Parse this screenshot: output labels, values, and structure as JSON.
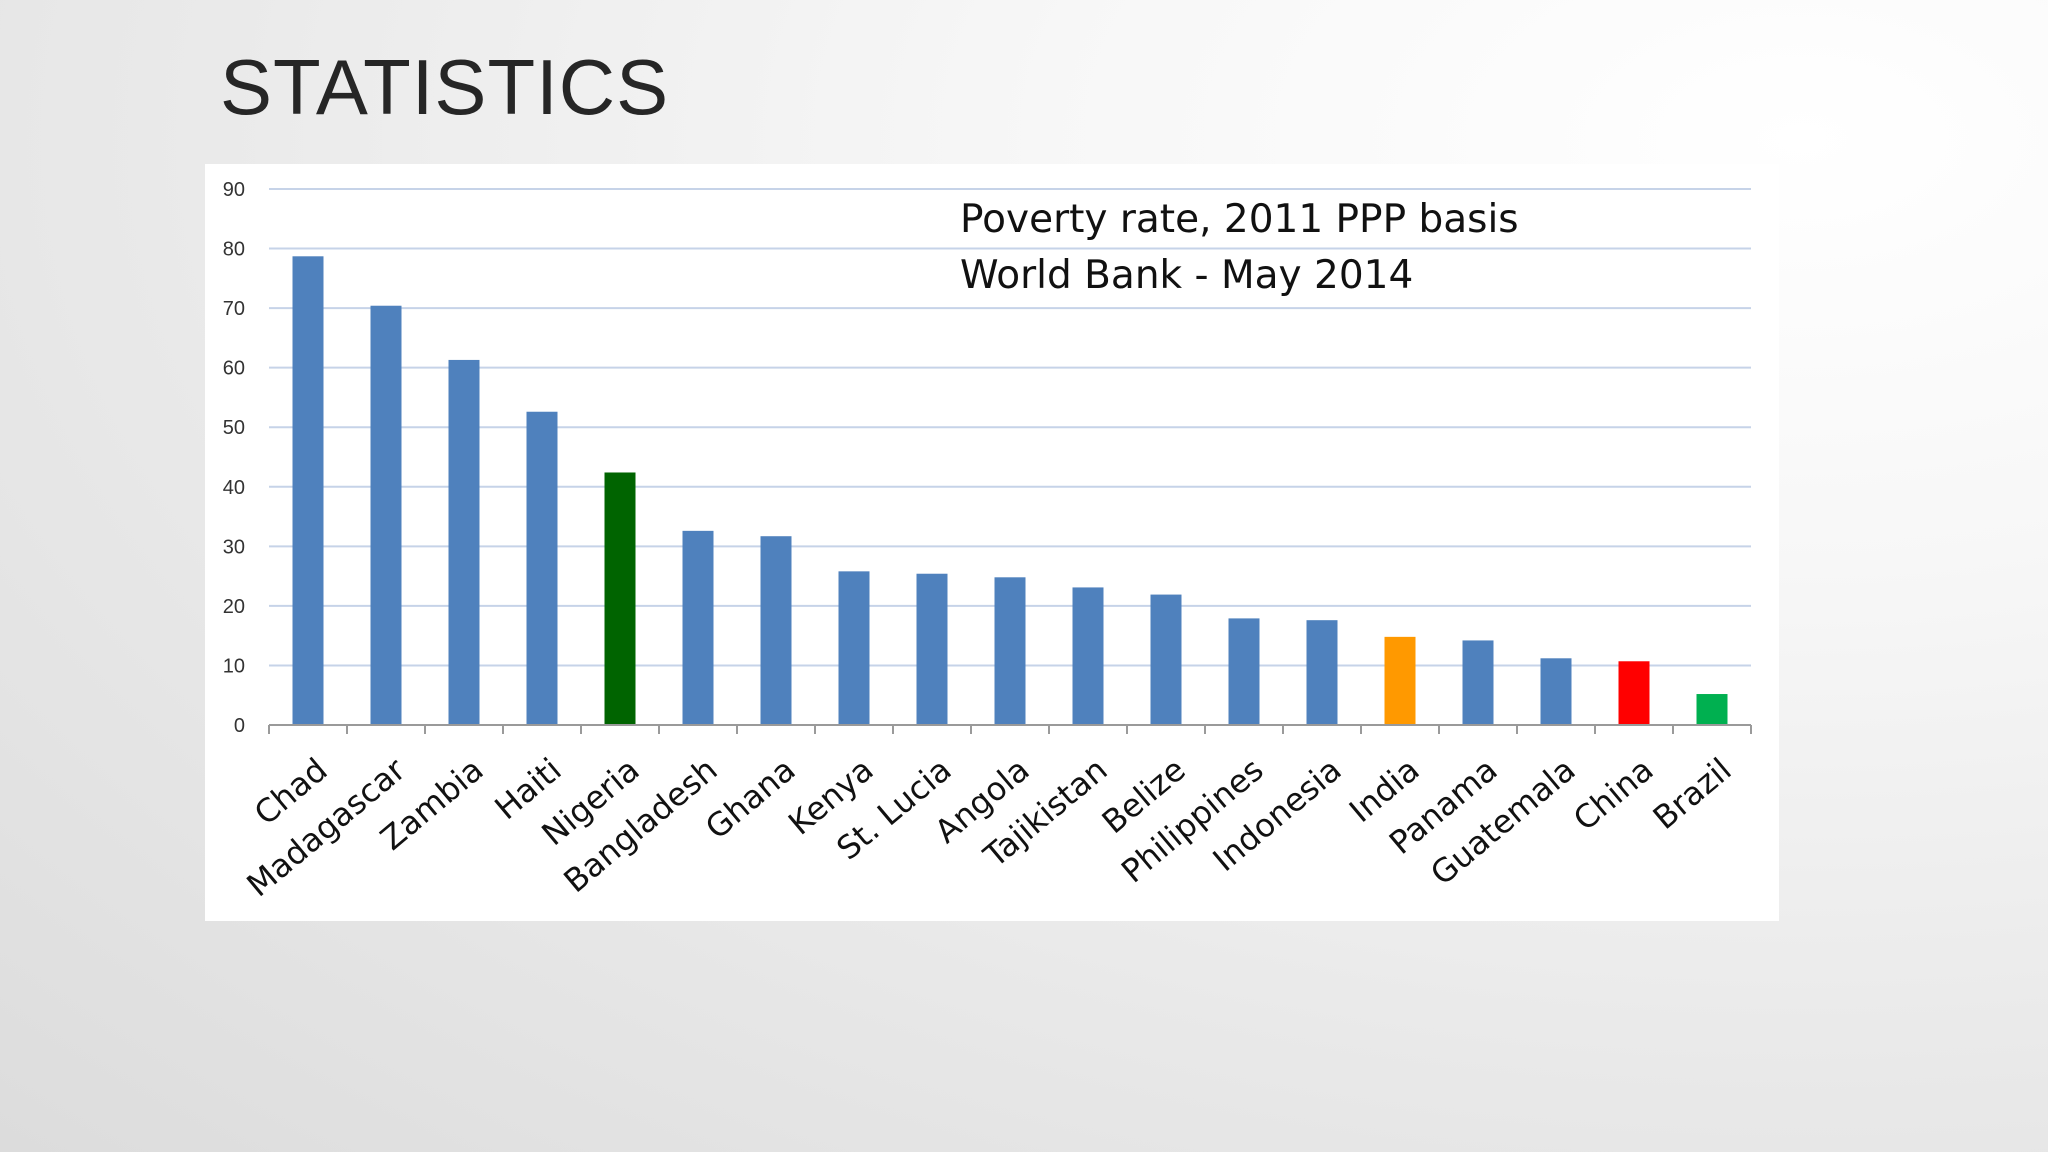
{
  "slide": {
    "title": "STATISTICS"
  },
  "chart_data": {
    "type": "bar",
    "title_lines": [
      "Poverty rate, 2011 PPP  basis",
      "World Bank - May 2014"
    ],
    "xlabel": "",
    "ylabel": "",
    "ylim": [
      0,
      90
    ],
    "yticks": [
      0,
      10,
      20,
      30,
      40,
      50,
      60,
      70,
      80,
      90
    ],
    "grid": true,
    "legend": "none",
    "categories": [
      "Chad",
      "Madagascar",
      "Zambia",
      "Haiti",
      "Nigeria",
      "Bangladesh",
      "Ghana",
      "Kenya",
      "St. Lucia",
      "Angola",
      "Tajikistan",
      "Belize",
      "Philippines",
      "Indonesia",
      "India",
      "Panama",
      "Guatemala",
      "China",
      "Brazil"
    ],
    "values": [
      78.7,
      70.4,
      61.3,
      52.6,
      42.4,
      32.6,
      31.7,
      25.8,
      25.4,
      24.8,
      23.1,
      21.9,
      17.9,
      17.6,
      14.8,
      14.2,
      11.2,
      10.7,
      5.2
    ],
    "colors": [
      "#4f81bd",
      "#4f81bd",
      "#4f81bd",
      "#4f81bd",
      "#006400",
      "#4f81bd",
      "#4f81bd",
      "#4f81bd",
      "#4f81bd",
      "#4f81bd",
      "#4f81bd",
      "#4f81bd",
      "#4f81bd",
      "#4f81bd",
      "#ff9900",
      "#4f81bd",
      "#4f81bd",
      "#ff0000",
      "#00b050"
    ],
    "gridline_color": "#c6d3e8",
    "axis_color": "#9a9a9a"
  }
}
